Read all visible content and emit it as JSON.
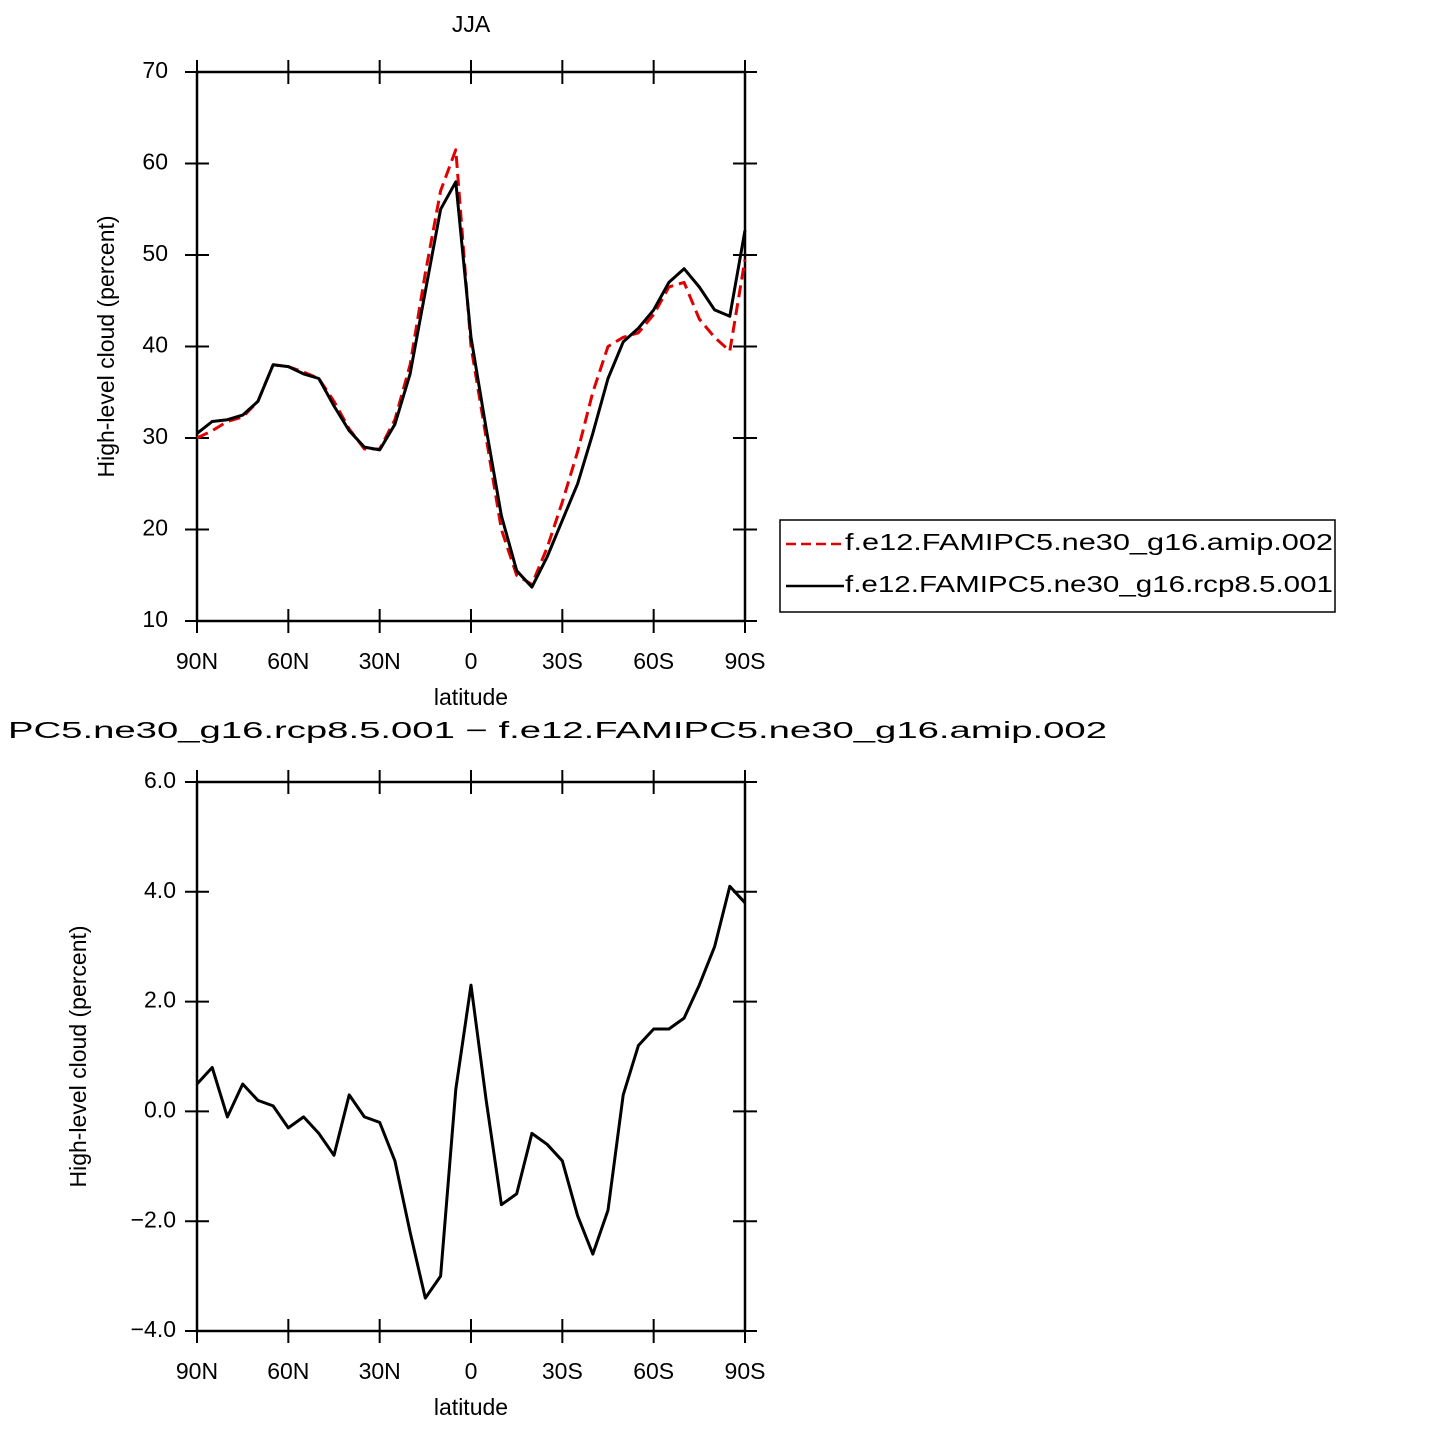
{
  "chart_data": [
    {
      "type": "line",
      "title": "JJA",
      "xlabel": "latitude",
      "ylabel": "High-level cloud (percent)",
      "x": [
        90,
        85,
        80,
        75,
        70,
        65,
        60,
        55,
        50,
        45,
        40,
        35,
        30,
        25,
        20,
        15,
        10,
        5,
        0,
        -5,
        -10,
        -15,
        -20,
        -25,
        -30,
        -35,
        -40,
        -45,
        -50,
        -55,
        -60,
        -65,
        -70,
        -75,
        -80,
        -85,
        -90
      ],
      "xlim": [
        90,
        -90
      ],
      "xticks": [
        {
          "value": 90,
          "label": "90N"
        },
        {
          "value": 60,
          "label": "60N"
        },
        {
          "value": 30,
          "label": "30N"
        },
        0,
        {
          "value": -30,
          "label": "30S"
        },
        {
          "value": -60,
          "label": "60S"
        },
        {
          "value": -90,
          "label": "90S"
        }
      ],
      "ylim": [
        10,
        70
      ],
      "yticks": [
        10,
        20,
        30,
        40,
        50,
        60,
        70
      ],
      "legend": "right",
      "series": [
        {
          "name": "f.e12.FAMIPC5.ne30_g16.amip.002",
          "color": "#e00000",
          "dashed": true,
          "values": [
            30,
            30.8,
            31.8,
            32.3,
            34,
            38,
            37.8,
            37.2,
            36.5,
            34,
            31,
            28.8,
            28.8,
            32,
            38,
            48,
            57,
            61.5,
            40,
            30,
            20,
            15,
            14,
            18,
            23,
            28.5,
            35,
            40,
            41,
            41.5,
            43.5,
            46.5,
            47,
            43,
            41,
            39.5,
            49.5
          ]
        },
        {
          "name": "f.e12.FAMIPC5.ne30_g16.rcp8.5.001",
          "color": "#000000",
          "dashed": false,
          "values": [
            30.5,
            31.8,
            32,
            32.5,
            34,
            38,
            37.8,
            37,
            36.5,
            33.5,
            30.8,
            29,
            28.7,
            31.5,
            37,
            46,
            55,
            58,
            41,
            31,
            21.5,
            15.5,
            13.7,
            17,
            21,
            25,
            30.5,
            36.5,
            40.5,
            42,
            44,
            47,
            48.5,
            46.5,
            44,
            43.3,
            52.7
          ]
        }
      ]
    },
    {
      "type": "line",
      "title": "PC5.ne30_g16.rcp8.5.001 − f.e12.FAMIPC5.ne30_g16.amip.002",
      "xlabel": "latitude",
      "ylabel": "High-level cloud (percent)",
      "x": [
        90,
        85,
        80,
        75,
        70,
        65,
        60,
        55,
        50,
        45,
        40,
        35,
        30,
        25,
        20,
        15,
        10,
        5,
        0,
        -5,
        -10,
        -15,
        -20,
        -25,
        -30,
        -35,
        -40,
        -45,
        -50,
        -55,
        -60,
        -65,
        -70,
        -75,
        -80,
        -85,
        -90
      ],
      "xlim": [
        90,
        -90
      ],
      "xticks": [
        {
          "value": 90,
          "label": "90N"
        },
        {
          "value": 60,
          "label": "60N"
        },
        {
          "value": 30,
          "label": "30N"
        },
        0,
        {
          "value": -30,
          "label": "30S"
        },
        {
          "value": -60,
          "label": "60S"
        },
        {
          "value": -90,
          "label": "90S"
        }
      ],
      "ylim": [
        -4,
        6
      ],
      "yticks": [
        {
          "value": -4,
          "label": "−4.0"
        },
        {
          "value": -2,
          "label": "−2.0"
        },
        {
          "value": 0,
          "label": "0.0"
        },
        {
          "value": 2,
          "label": "2.0"
        },
        {
          "value": 4,
          "label": "4.0"
        },
        {
          "value": 6,
          "label": "6.0"
        }
      ],
      "series": [
        {
          "color": "#000000",
          "dashed": false,
          "values": [
            0.5,
            0.8,
            -0.1,
            0.5,
            0.2,
            0.1,
            -0.3,
            -0.1,
            -0.4,
            -0.8,
            0.3,
            -0.1,
            -0.2,
            -0.9,
            -2.2,
            -3.4,
            -3,
            0.4,
            2.3,
            0.2,
            -1.7,
            -1.5,
            -0.4,
            -0.6,
            -0.9,
            -1.9,
            -2.6,
            -1.8,
            0.3,
            1.2,
            1.5,
            1.5,
            1.7,
            2.3,
            3,
            4.1,
            3.8
          ]
        }
      ]
    }
  ]
}
